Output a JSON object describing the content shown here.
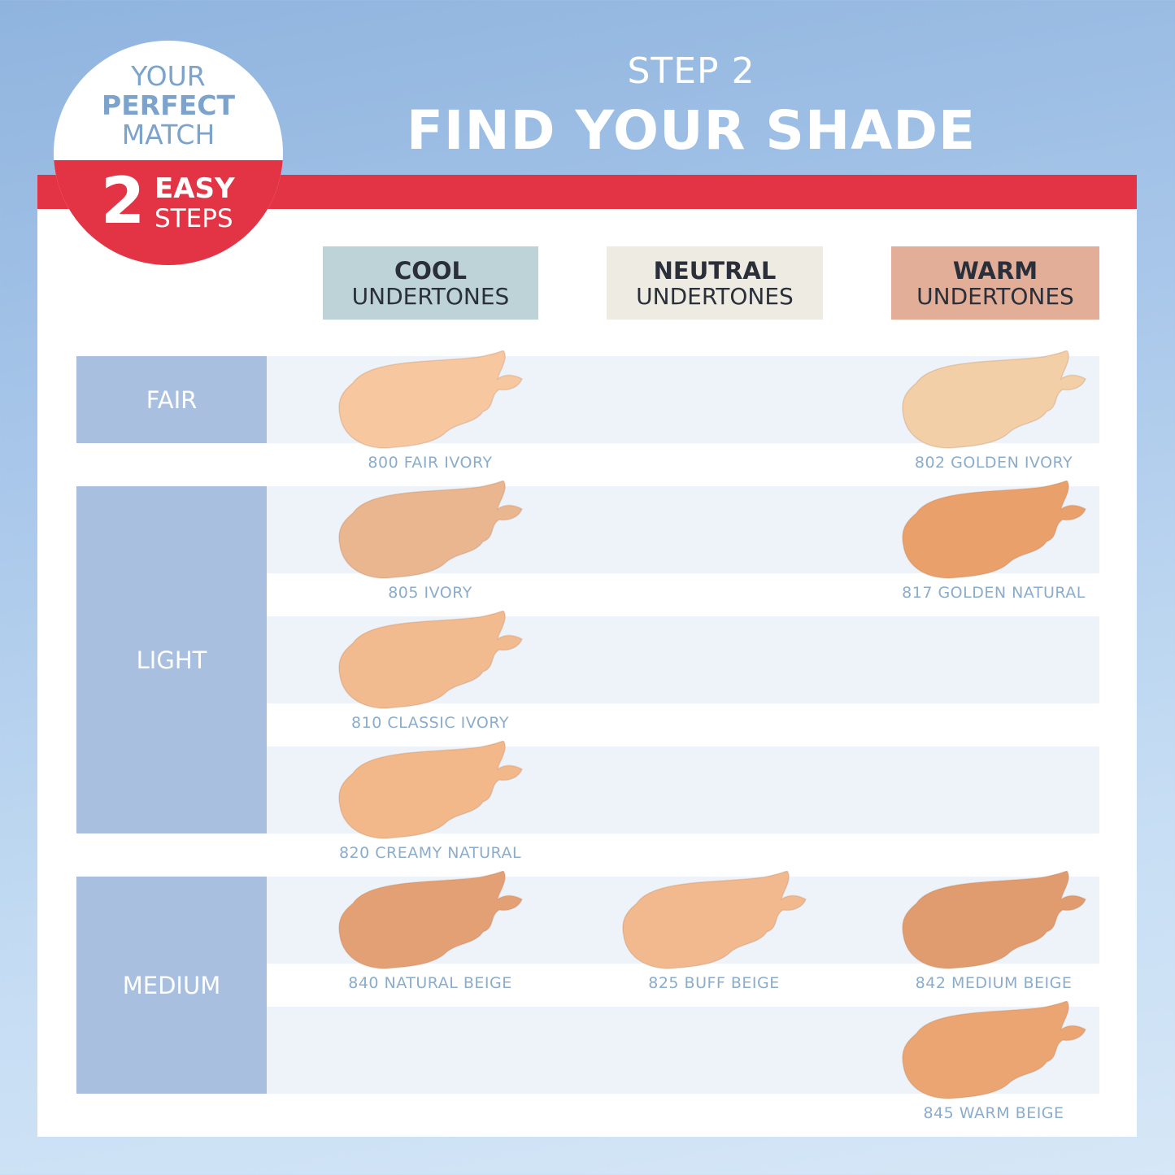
{
  "badge": {
    "line1": "YOUR",
    "line2": "PERFECT",
    "line3": "MATCH",
    "number": "2",
    "line4": "EASY",
    "line5": "STEPS"
  },
  "header": {
    "step": "STEP 2",
    "title": "FIND YOUR SHADE"
  },
  "columns": [
    {
      "bold": "COOL",
      "label": "UNDERTONES",
      "color": "#bdd3d7"
    },
    {
      "bold": "NEUTRAL",
      "label": "UNDERTONES",
      "color": "#eeece2"
    },
    {
      "bold": "WARM",
      "label": "UNDERTONES",
      "color": "#e2ae98"
    }
  ],
  "rows": [
    {
      "label": "FAIR"
    },
    {
      "label": "LIGHT"
    },
    {
      "label": "MEDIUM"
    }
  ],
  "shades": [
    {
      "label": "800 FAIR IVORY",
      "slot": 0,
      "col": 0,
      "color": "#f7c7a0"
    },
    {
      "label": "802 GOLDEN IVORY",
      "slot": 0,
      "col": 2,
      "color": "#f2cfa6"
    },
    {
      "label": "805 IVORY",
      "slot": 1,
      "col": 0,
      "color": "#e9b68f"
    },
    {
      "label": "817 GOLDEN NATURAL",
      "slot": 1,
      "col": 2,
      "color": "#e9a06a"
    },
    {
      "label": "810 CLASSIC IVORY",
      "slot": 2,
      "col": 0,
      "color": "#f2bb8f"
    },
    {
      "label": "820 CREAMY NATURAL",
      "slot": 3,
      "col": 0,
      "color": "#f3b88a"
    },
    {
      "label": "840 NATURAL BEIGE",
      "slot": 4,
      "col": 0,
      "color": "#e4a075"
    },
    {
      "label": "825 BUFF BEIGE",
      "slot": 4,
      "col": 1,
      "color": "#f2b98f"
    },
    {
      "label": "842 MEDIUM BEIGE",
      "slot": 4,
      "col": 2,
      "color": "#e09c6f"
    },
    {
      "label": "845 WARM BEIGE",
      "slot": 5,
      "col": 2,
      "color": "#eaa572"
    }
  ]
}
